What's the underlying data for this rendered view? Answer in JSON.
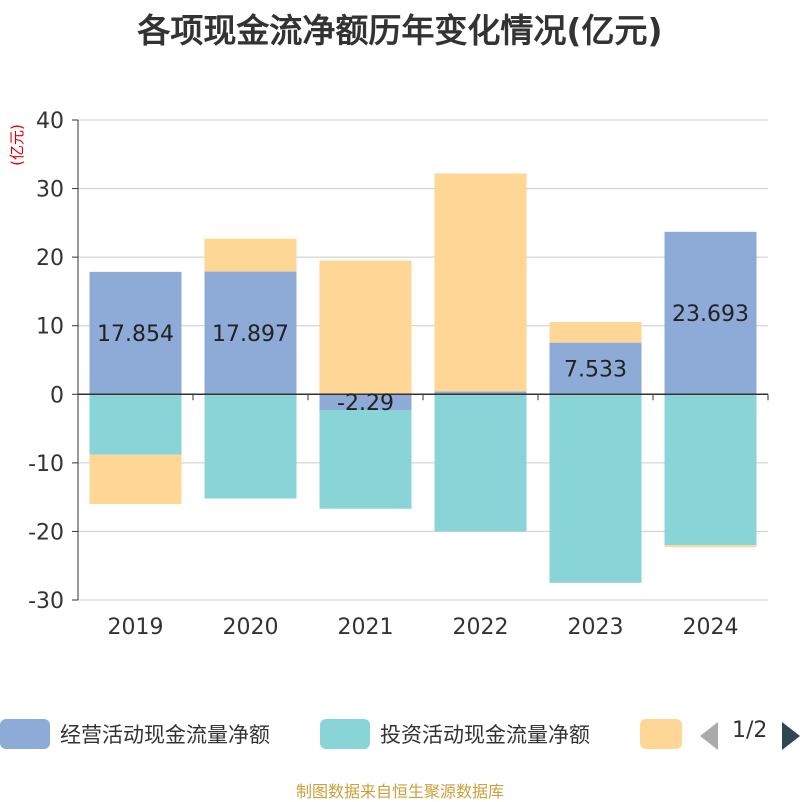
{
  "title": "各项现金流净额历年变化情况(亿元)",
  "source": "制图数据来自恒生聚源数据库",
  "pager": "1/2",
  "chart_data": {
    "type": "bar",
    "stacked": true,
    "ylabel": "(亿元)",
    "ylim": [
      -30,
      40
    ],
    "yticks": [
      40,
      30,
      20,
      10,
      0,
      -10,
      -20,
      -30
    ],
    "ytick_labels": [
      "40",
      "30",
      "20",
      "10",
      "0",
      "-10",
      "-20",
      "-30"
    ],
    "categories": [
      "2019",
      "2020",
      "2021",
      "2022",
      "2023",
      "2024"
    ],
    "series": [
      {
        "name": "经营活动现金流量净额",
        "color": "#8eabd8",
        "values": [
          17.854,
          17.897,
          -2.29,
          0.4,
          7.533,
          23.693
        ],
        "labels": [
          "17.854",
          "17.897",
          "-2.29",
          "",
          "7.533",
          "23.693"
        ]
      },
      {
        "name": "投资活动现金流量净额",
        "color": "#88d4d6",
        "values": [
          -8.8,
          -15.2,
          -14.4,
          -20.0,
          -27.5,
          -22.0
        ],
        "labels": [
          "",
          "",
          "",
          "",
          "",
          ""
        ]
      },
      {
        "name": "",
        "color": "#fed695",
        "values": [
          -7.2,
          4.8,
          19.5,
          31.8,
          3.0,
          -0.3
        ],
        "labels": [
          "",
          "",
          "",
          "",
          "",
          ""
        ]
      }
    ]
  }
}
